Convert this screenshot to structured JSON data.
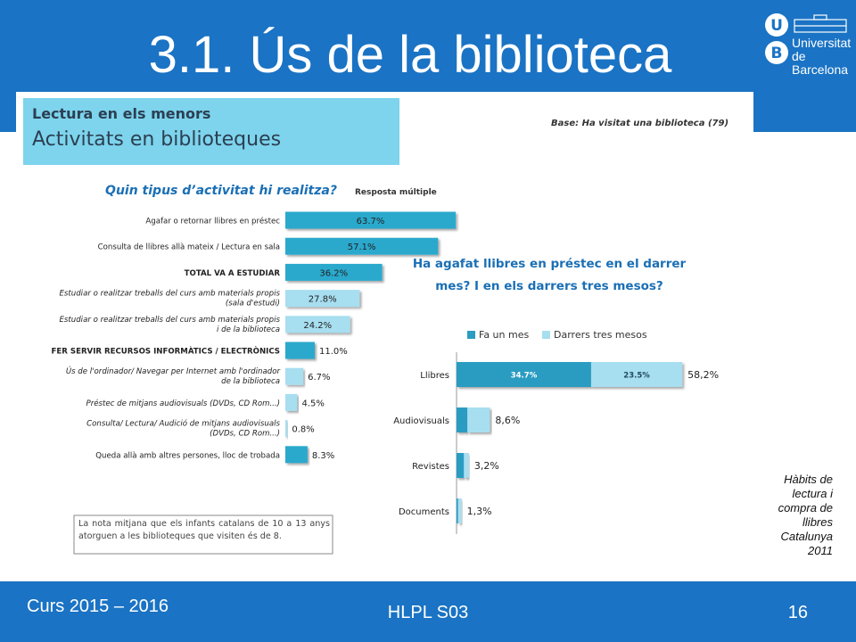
{
  "slide": {
    "title": "3.1. Ús de la biblioteca",
    "logo_line1": "Universitat",
    "logo_line2": "de Barcelona",
    "logo_letters": [
      "U",
      "B"
    ],
    "footer_left": "Curs 2015 – 2016",
    "footer_center": "HLPL S03",
    "page_number": "16",
    "source_note": "Hàbits de lectura i compra de llibres Catalunya 2011",
    "brand_color": "#1a73c4"
  },
  "figure": {
    "subtitle": "Lectura en els menors",
    "heading": "Activitats en biblioteques",
    "base_note": "Base: Ha visitat una biblioteca (79)",
    "summary_note": "La nota mitjana que els infants catalans de 10 a 13 anys atorguen a les biblioteques que visiten és de 8."
  },
  "chart_data": [
    {
      "type": "bar",
      "orientation": "horizontal",
      "title": "Quin tipus d’activitat hi realitza?",
      "note": "Resposta múltiple",
      "unit": "%",
      "categories": [
        {
          "label": [
            "Agafar o retornar llibres en préstec"
          ],
          "value": 63.7,
          "display": "63.7%",
          "group": "item"
        },
        {
          "label": [
            "Consulta de llibres allà mateix / Lectura en sala"
          ],
          "value": 57.1,
          "display": "57.1%",
          "group": "item"
        },
        {
          "label": [
            "TOTAL VA A ESTUDIAR"
          ],
          "value": 36.2,
          "display": "36.2%",
          "group": "total"
        },
        {
          "label": [
            "Estudiar o realitzar treballs del curs amb materials propis",
            "(sala d'estudi)"
          ],
          "value": 27.8,
          "display": "27.8%",
          "group": "sub"
        },
        {
          "label": [
            "Estudiar o realitzar treballs del curs amb materials propis",
            "i de la biblioteca"
          ],
          "value": 24.2,
          "display": "24.2%",
          "group": "sub"
        },
        {
          "label": [
            "FER SERVIR RECURSOS INFORMÀTICS / ELECTRÒNICS"
          ],
          "value": 11.0,
          "display": "11.0%",
          "group": "total"
        },
        {
          "label": [
            "Ús de l'ordinador/ Navegar per Internet amb l'ordinador",
            "de la biblioteca"
          ],
          "value": 6.7,
          "display": "6.7%",
          "group": "sub"
        },
        {
          "label": [
            "Préstec de mitjans audiovisuals (DVDs, CD Rom...)"
          ],
          "value": 4.5,
          "display": "4.5%",
          "group": "sub"
        },
        {
          "label": [
            "Consulta/ Lectura/ Audició de mitjans audiovisuals",
            "(DVDs, CD Rom...)"
          ],
          "value": 0.8,
          "display": "0.8%",
          "group": "sub"
        },
        {
          "label": [
            "Queda allà amb altres persones, lloc de trobada"
          ],
          "value": 8.3,
          "display": "8.3%",
          "group": "item"
        }
      ],
      "colors": {
        "item": "#2ba9cd",
        "total": "#2ba9cd",
        "sub": "#a7def0"
      },
      "grid": false
    },
    {
      "type": "bar",
      "orientation": "horizontal",
      "stacked": true,
      "title": [
        "Ha agafat llibres en préstec en el darrer",
        "mes? I en els darrers tres mesos?"
      ],
      "legend": {
        "placement": "top-left",
        "entries": [
          "Fa un mes",
          "Darrers tres mesos"
        ]
      },
      "categories": [
        "Llibres",
        "Audiovisuals",
        "Revistes",
        "Documents"
      ],
      "series": [
        {
          "name": "Fa un mes",
          "values": [
            34.7,
            2.8,
            1.9,
            0.4
          ],
          "color": "#2b9cc2",
          "labels": [
            "34.7%",
            "",
            "",
            ""
          ]
        },
        {
          "name": "Darrers tres mesos",
          "values": [
            23.5,
            5.8,
            1.3,
            0.9
          ],
          "color": "#a7def0",
          "labels": [
            "23.5%",
            "",
            "",
            ""
          ]
        }
      ],
      "totals": [
        "58,2%",
        "8,6%",
        "3,2%",
        "1,3%"
      ],
      "grid": false
    }
  ]
}
